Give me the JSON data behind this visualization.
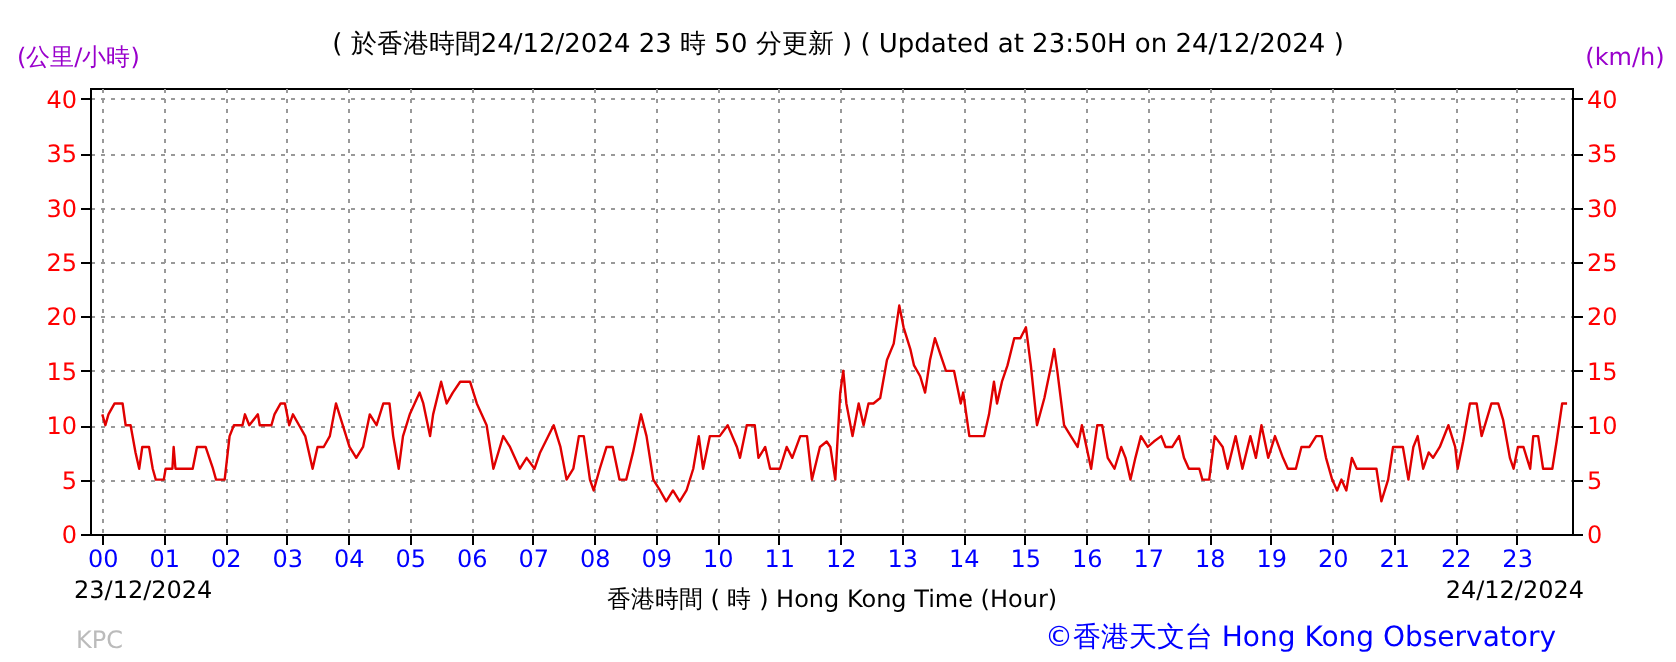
{
  "chart_data": {
    "type": "line",
    "title": "( 於香港時間24/12/2024 23 時 50 分更新 ) ( Updated at 23:50H on 24/12/2024 )",
    "xlabel": "香港時間 ( 時 )  Hong Kong Time (Hour)",
    "ylabel": "(公里/小時)",
    "y2label": "(km/h)",
    "annotations": [
      "23/12/2024",
      "24/12/2024",
      "KPC",
      "©香港天文台 Hong Kong Observatory"
    ],
    "xlim": [
      -0.2,
      23.9
    ],
    "xticks": [
      {
        "value": 0,
        "label": "00"
      },
      {
        "value": 1,
        "label": "01"
      },
      {
        "value": 2,
        "label": "02"
      },
      {
        "value": 3,
        "label": "03"
      },
      {
        "value": 4,
        "label": "04"
      },
      {
        "value": 5,
        "label": "05"
      },
      {
        "value": 6,
        "label": "06"
      },
      {
        "value": 7,
        "label": "07"
      },
      {
        "value": 8,
        "label": "08"
      },
      {
        "value": 9,
        "label": "09"
      },
      {
        "value": 10,
        "label": "10"
      },
      {
        "value": 11,
        "label": "11"
      },
      {
        "value": 12,
        "label": "12"
      },
      {
        "value": 13,
        "label": "13"
      },
      {
        "value": 14,
        "label": "14"
      },
      {
        "value": 15,
        "label": "15"
      },
      {
        "value": 16,
        "label": "16"
      },
      {
        "value": 17,
        "label": "17"
      },
      {
        "value": 18,
        "label": "18"
      },
      {
        "value": 19,
        "label": "19"
      },
      {
        "value": 20,
        "label": "20"
      },
      {
        "value": 21,
        "label": "21"
      },
      {
        "value": 22,
        "label": "22"
      },
      {
        "value": 23,
        "label": "23"
      }
    ],
    "ylim": [
      0,
      41
    ],
    "yticks": [
      0,
      5,
      10,
      15,
      20,
      25,
      30,
      35,
      40
    ],
    "y2lim": [
      0,
      41
    ],
    "y2ticks": [
      0,
      5,
      10,
      15,
      20,
      25,
      30,
      35,
      40
    ],
    "grid": true,
    "line_style": "solid",
    "series": [
      {
        "color": "#e00000",
        "x": [
          0,
          0.05,
          0.1,
          0.2,
          0.33,
          0.38,
          0.46,
          0.54,
          0.6,
          0.65,
          0.76,
          0.82,
          0.87,
          1.0,
          1.03,
          1.14,
          1.16,
          1.19,
          1.47,
          1.54,
          1.68,
          1.8,
          1.85,
          1.99,
          2.07,
          2.14,
          2.28,
          2.32,
          2.39,
          2.53,
          2.56,
          2.75,
          2.8,
          2.9,
          2.97,
          3.04,
          3.1,
          3.2,
          3.3,
          3.42,
          3.5,
          3.6,
          3.7,
          3.8,
          3.91,
          4.02,
          4.13,
          4.24,
          4.35,
          4.46,
          4.57,
          4.67,
          4.73,
          4.82,
          4.89,
          5.0,
          5.16,
          5.22,
          5.33,
          5.38,
          5.51,
          5.6,
          5.7,
          5.82,
          5.98,
          6.09,
          6.25,
          6.36,
          6.52,
          6.63,
          6.79,
          6.9,
          7.03,
          7.12,
          7.34,
          7.45,
          7.55,
          7.66,
          7.75,
          7.83,
          7.93,
          7.99,
          8.09,
          8.2,
          8.3,
          8.41,
          8.52,
          8.63,
          8.76,
          8.85,
          8.96,
          9.07,
          9.17,
          9.28,
          9.39,
          9.5,
          9.61,
          9.7,
          9.77,
          9.88,
          10.04,
          10.17,
          10.32,
          10.37,
          10.48,
          10.61,
          10.67,
          10.78,
          10.86,
          11.02,
          11.13,
          11.22,
          11.35,
          11.46,
          11.54,
          11.67,
          11.78,
          11.84,
          11.92,
          12.0,
          12.05,
          12.1,
          12.2,
          12.3,
          12.38,
          12.46,
          12.54,
          12.65,
          12.76,
          12.87,
          12.96,
          13.03,
          13.14,
          13.2,
          13.3,
          13.38,
          13.46,
          13.54,
          13.63,
          13.72,
          13.85,
          13.96,
          14.0,
          14.1,
          14.17,
          14.34,
          14.42,
          14.5,
          14.55,
          14.63,
          14.72,
          14.83,
          14.93,
          15.02,
          15.1,
          15.2,
          15.32,
          15.43,
          15.48,
          15.53,
          15.64,
          15.75,
          15.86,
          15.93,
          16.08,
          16.18,
          16.26,
          16.35,
          16.46,
          16.57,
          16.64,
          16.72,
          16.8,
          16.89,
          17.0,
          17.1,
          17.22,
          17.29,
          17.4,
          17.51,
          17.59,
          17.67,
          17.84,
          17.89,
          18.0,
          18.09,
          18.22,
          18.3,
          18.43,
          18.54,
          18.67,
          18.76,
          18.85,
          18.96,
          19.07,
          19.2,
          19.28,
          19.41,
          19.5,
          19.63,
          19.74,
          19.83,
          19.9,
          20.0,
          20.08,
          20.15,
          20.23,
          20.32,
          20.4,
          20.72,
          20.8,
          20.91,
          20.99,
          21.15,
          21.24,
          21.32,
          21.39,
          21.48,
          21.57,
          21.64,
          21.75,
          21.89,
          22.0,
          22.04,
          22.13,
          22.24,
          22.35,
          22.43,
          22.51,
          22.59,
          22.7,
          22.78,
          22.89,
          22.95,
          23.02,
          23.11,
          23.22,
          23.27,
          23.35,
          23.43,
          23.58,
          23.65,
          23.74,
          23.82
        ],
        "values": [
          11,
          10,
          11,
          12,
          12,
          10,
          10,
          7.5,
          6,
          8,
          8,
          6,
          5,
          5,
          6,
          6,
          8,
          6,
          6,
          8,
          8,
          6,
          5,
          5,
          9,
          10,
          10,
          11,
          10,
          11,
          10,
          10,
          11,
          12,
          12,
          10,
          11,
          10,
          9,
          6,
          8,
          8,
          9,
          12,
          10,
          8,
          7,
          8,
          11,
          10,
          12,
          12,
          9,
          6,
          9,
          11,
          13,
          12,
          9,
          11,
          14,
          12,
          13,
          14,
          14,
          12,
          10,
          6,
          9,
          8,
          6,
          7,
          6,
          7.5,
          10,
          8,
          5,
          6,
          9,
          9,
          5,
          4,
          6,
          8,
          8,
          5,
          5,
          7.5,
          11,
          9,
          5,
          4,
          3,
          4,
          3,
          4,
          6,
          9,
          6,
          9,
          9,
          10,
          8,
          7,
          10,
          10,
          7,
          8,
          6,
          6,
          8,
          7,
          9,
          9,
          5,
          8,
          8.5,
          8,
          5,
          13,
          15,
          12,
          9,
          12,
          10,
          12,
          12,
          12.5,
          16,
          17.5,
          21,
          19,
          17,
          15.5,
          14.5,
          13,
          16,
          18,
          16.5,
          15,
          15,
          12,
          13,
          9,
          9,
          9,
          11,
          14,
          12,
          14,
          15.5,
          18,
          18,
          19,
          15.5,
          10,
          12.5,
          15.5,
          17,
          15,
          10,
          9,
          8,
          10,
          6,
          10,
          10,
          7,
          6,
          8,
          7,
          5,
          7,
          9,
          8,
          8.5,
          9,
          8,
          8,
          9,
          7,
          6,
          6,
          5,
          5,
          9,
          8,
          6,
          9,
          6,
          9,
          7,
          10,
          7,
          9,
          7,
          6,
          6,
          8,
          8,
          9,
          9,
          7,
          5,
          4,
          5,
          4,
          7,
          6,
          6,
          3,
          5,
          8,
          8,
          5,
          8,
          9,
          6,
          7.5,
          7,
          8,
          10,
          8,
          6,
          8.5,
          12,
          12,
          9,
          10.5,
          12,
          12,
          10.5,
          7,
          6,
          8,
          8,
          6,
          9,
          9,
          6,
          6,
          8.5,
          12,
          12
        ]
      }
    ]
  }
}
